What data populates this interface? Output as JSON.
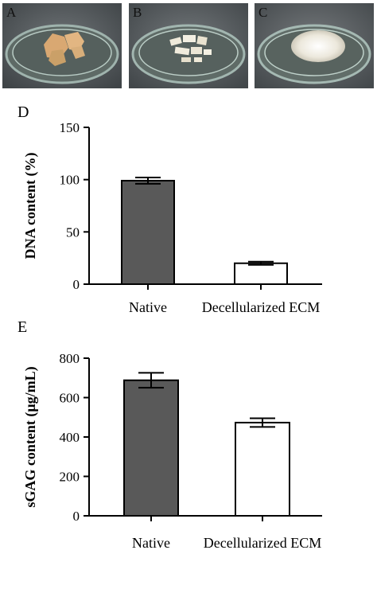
{
  "photos": [
    {
      "label": "A"
    },
    {
      "label": "B"
    },
    {
      "label": "C"
    }
  ],
  "chart_data": [
    {
      "panel": "D",
      "type": "bar",
      "categories": [
        "Native",
        "Decellularized ECM"
      ],
      "values": [
        99,
        20
      ],
      "errors": [
        3,
        1.5
      ],
      "ylabel": "DNA content (%)",
      "ylim": [
        0,
        150
      ],
      "yticks": [
        0,
        50,
        100,
        150
      ],
      "bar_colors": [
        "#595959",
        "#ffffff"
      ]
    },
    {
      "panel": "E",
      "type": "bar",
      "categories": [
        "Native",
        "Decellularized ECM"
      ],
      "values": [
        688,
        473
      ],
      "errors": [
        38,
        22
      ],
      "ylabel": "sGAG content (μg/mL)",
      "ylim": [
        0,
        800
      ],
      "yticks": [
        0,
        200,
        400,
        600,
        800
      ],
      "bar_colors": [
        "#595959",
        "#ffffff"
      ]
    }
  ]
}
